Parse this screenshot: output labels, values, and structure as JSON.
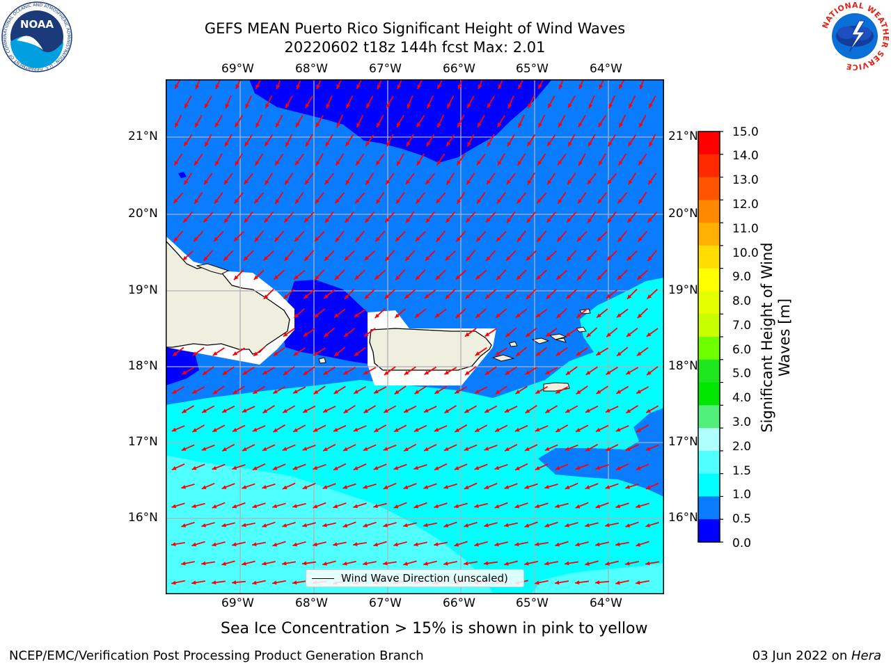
{
  "header": {
    "title_line1": "GEFS MEAN Puerto Rico Significant Height of Wind Waves",
    "title_line2": "20220602 t18z 144h fcst   Max: 2.01"
  },
  "map": {
    "lon_ticks": [
      "69°W",
      "68°W",
      "67°W",
      "66°W",
      "65°W",
      "64°W"
    ],
    "lat_ticks": [
      "21°N",
      "20°N",
      "19°N",
      "18°N",
      "17°N",
      "16°N"
    ],
    "legend_label": "Wind Wave Direction (unscaled)",
    "colors": {
      "level_0_0.5": "#0000ff",
      "level_0.5_1": "#0a7cff",
      "level_1_1.5": "#00ffff",
      "level_1.5_2": "#50ffff",
      "land": "#efefdf",
      "arrow": "#ff0000"
    }
  },
  "colorbar": {
    "title": "Significant Height of Wind Waves [m]",
    "labels": [
      "15.0",
      "14.0",
      "13.0",
      "12.0",
      "11.0",
      "10.0",
      "9.0",
      "8.0",
      "7.0",
      "6.0",
      "5.0",
      "4.0",
      "3.0",
      "2.0",
      "1.5",
      "1.0",
      "0.5",
      "0.0"
    ],
    "colors_top_to_bottom": [
      "#ff0000",
      "#ff2a00",
      "#ff5500",
      "#ff8800",
      "#ffb000",
      "#ffdd00",
      "#ffff00",
      "#e5ff00",
      "#c8ff00",
      "#6eff00",
      "#1ee61e",
      "#00e600",
      "#50f07a",
      "#b0ffff",
      "#50ffff",
      "#00ffff",
      "#0a7cff",
      "#0000ff"
    ]
  },
  "notes": {
    "sea_ice": "Sea Ice Concentration > 15% is shown in pink to yellow"
  },
  "footer": {
    "left": "NCEP/EMC/Verification Post Processing Product Generation Branch",
    "right_prefix": "03 Jun 2022 on ",
    "right_host": "Hera"
  },
  "logos": {
    "noaa_text": "NOAA",
    "noaa_ring": "NATIONAL OCEANIC AND ATMOSPHERIC ADMINISTRATION · U.S. DEPARTMENT OF COMMERCE",
    "nws_ring": "NATIONAL WEATHER SERVICE"
  }
}
